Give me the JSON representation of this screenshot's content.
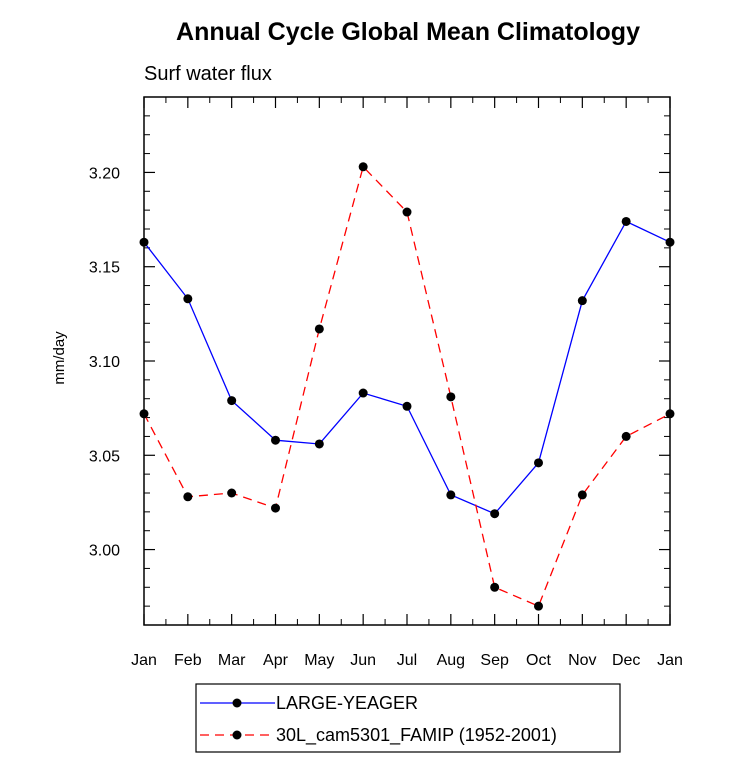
{
  "chart_data": {
    "type": "line",
    "title": "Annual Cycle Global Mean Climatology",
    "subtitle": "Surf water flux",
    "ylabel": "mm/day",
    "xlabel": "",
    "categories": [
      "Jan",
      "Feb",
      "Mar",
      "Apr",
      "May",
      "Jun",
      "Jul",
      "Aug",
      "Sep",
      "Oct",
      "Nov",
      "Dec",
      "Jan"
    ],
    "ylim": [
      2.96,
      3.24
    ],
    "yticks": [
      "3.00",
      "3.05",
      "3.10",
      "3.15",
      "3.20"
    ],
    "series": [
      {
        "name": "LARGE-YEAGER",
        "color": "#0000ff",
        "dash": "solid",
        "values": [
          3.163,
          3.133,
          3.079,
          3.058,
          3.056,
          3.083,
          3.076,
          3.029,
          3.019,
          3.046,
          3.132,
          3.174,
          3.163
        ]
      },
      {
        "name": "30L_cam5301_FAMIP (1952-2001)",
        "color": "#ff0000",
        "dash": "dashed",
        "values": [
          3.072,
          3.028,
          3.03,
          3.022,
          3.117,
          3.203,
          3.179,
          3.081,
          2.98,
          2.97,
          3.029,
          3.06,
          3.072
        ]
      }
    ]
  }
}
